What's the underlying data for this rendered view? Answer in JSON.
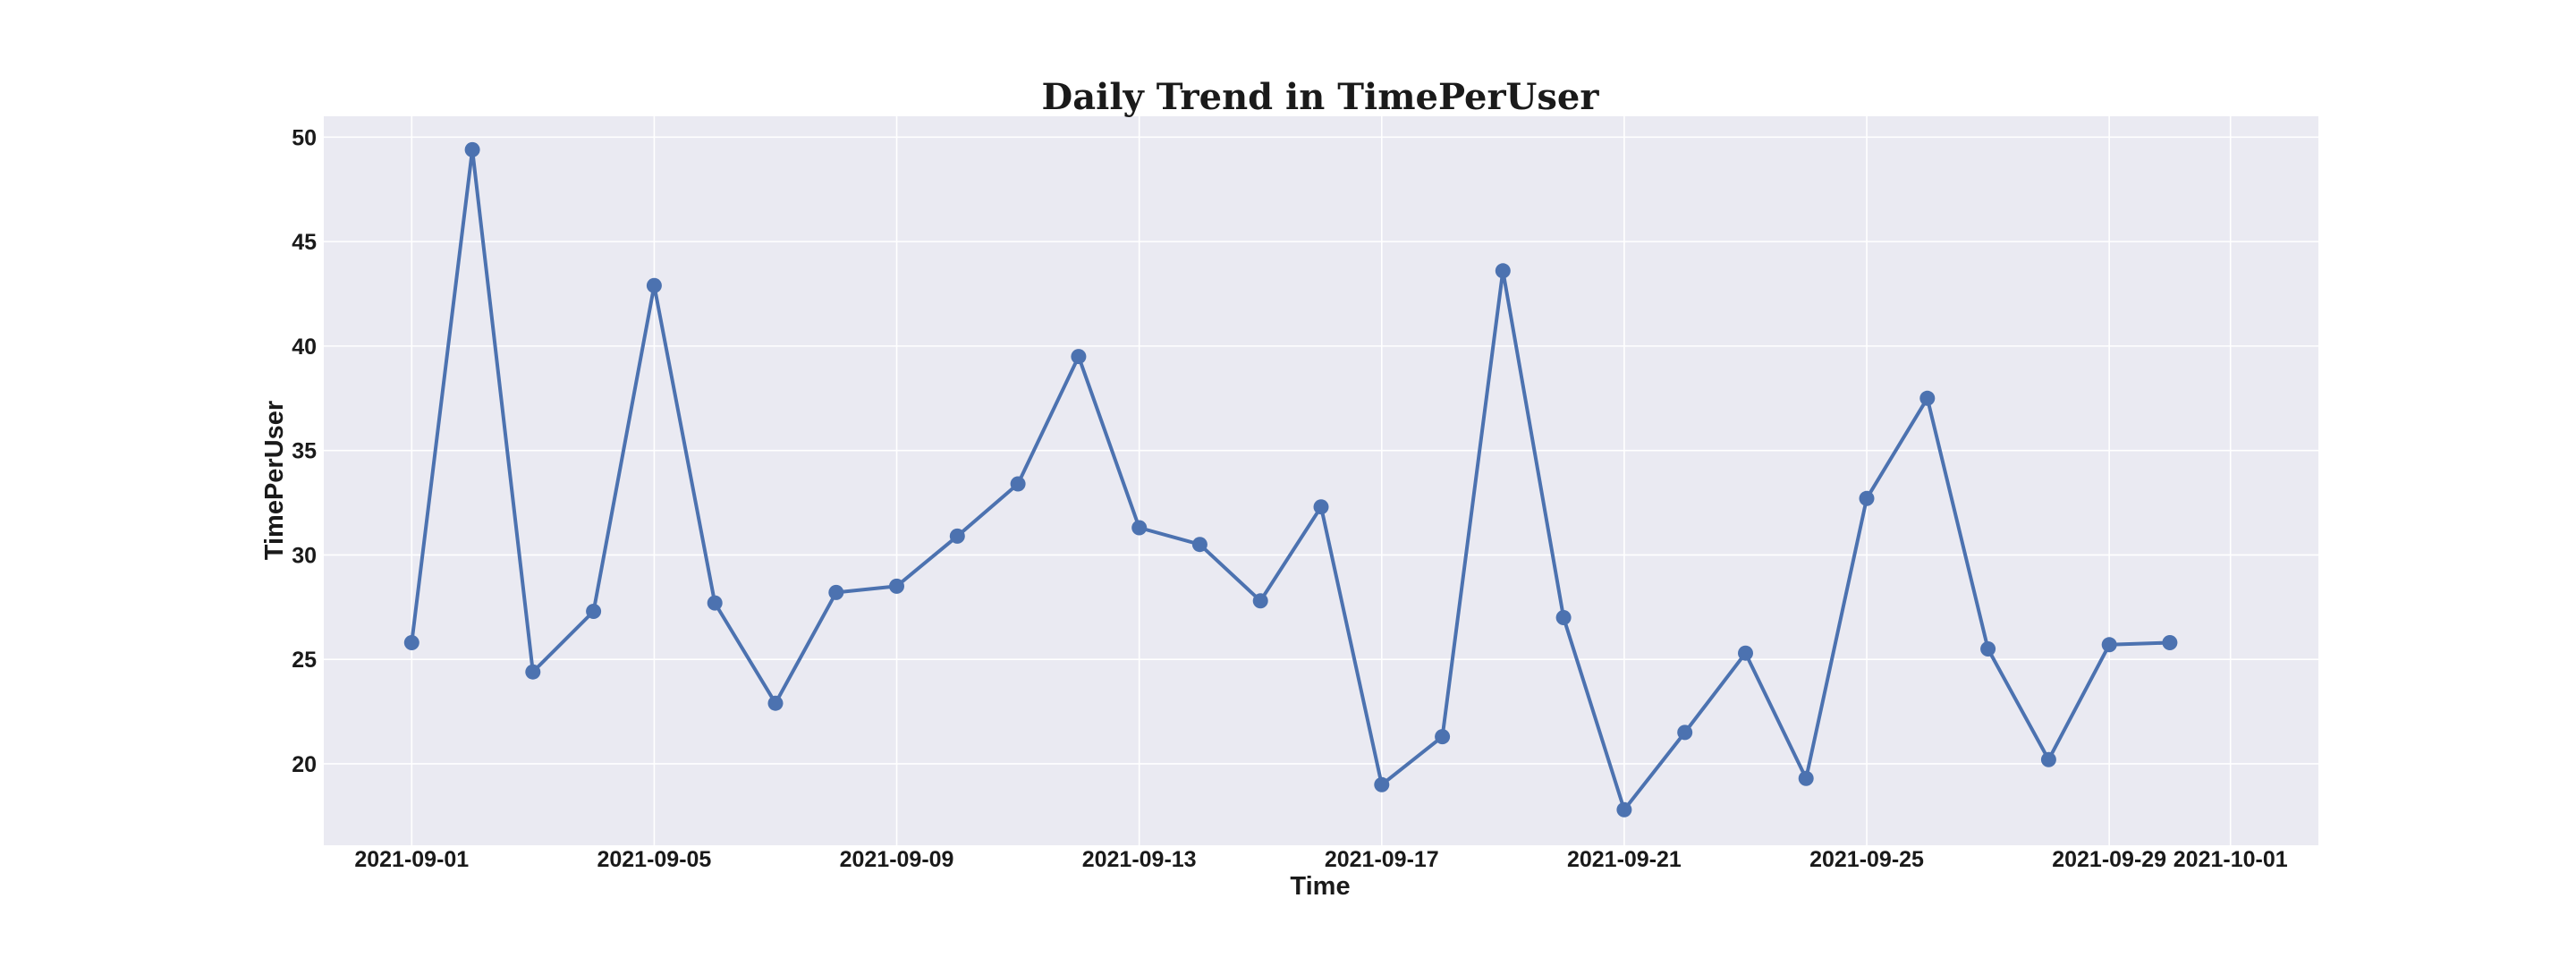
{
  "chart_data": {
    "type": "line",
    "title": "Daily Trend in TimePerUser",
    "xlabel": "Time",
    "ylabel": "TimePerUser",
    "x": [
      "2021-09-01",
      "2021-09-02",
      "2021-09-03",
      "2021-09-04",
      "2021-09-05",
      "2021-09-06",
      "2021-09-07",
      "2021-09-08",
      "2021-09-09",
      "2021-09-10",
      "2021-09-11",
      "2021-09-12",
      "2021-09-13",
      "2021-09-14",
      "2021-09-15",
      "2021-09-16",
      "2021-09-17",
      "2021-09-18",
      "2021-09-19",
      "2021-09-20",
      "2021-09-21",
      "2021-09-22",
      "2021-09-23",
      "2021-09-24",
      "2021-09-25",
      "2021-09-26",
      "2021-09-27",
      "2021-09-28",
      "2021-09-29",
      "2021-09-30"
    ],
    "series": [
      {
        "values": [
          25.8,
          49.4,
          24.4,
          27.3,
          42.9,
          27.7,
          22.9,
          28.2,
          28.5,
          30.9,
          33.4,
          39.5,
          31.3,
          30.5,
          27.8,
          32.3,
          19.0,
          21.3,
          43.6,
          27.0,
          17.8,
          21.5,
          25.3,
          19.3,
          32.7,
          37.5,
          25.5,
          20.2,
          25.7,
          25.8
        ],
        "color": "#4c72b0"
      }
    ],
    "xlim": [
      "2021-08-30.55",
      "2021-10-02.45"
    ],
    "ylim": [
      16.1,
      51.0
    ],
    "x_ticks": [
      "2021-09-01",
      "2021-09-05",
      "2021-09-09",
      "2021-09-13",
      "2021-09-17",
      "2021-09-21",
      "2021-09-25",
      "2021-09-29",
      "2021-10-01"
    ],
    "y_ticks": [
      20,
      25,
      30,
      35,
      40,
      45,
      50
    ],
    "grid": true,
    "legend": false,
    "plot_background": "#eaeaf2",
    "grid_color": "#ffffff"
  }
}
